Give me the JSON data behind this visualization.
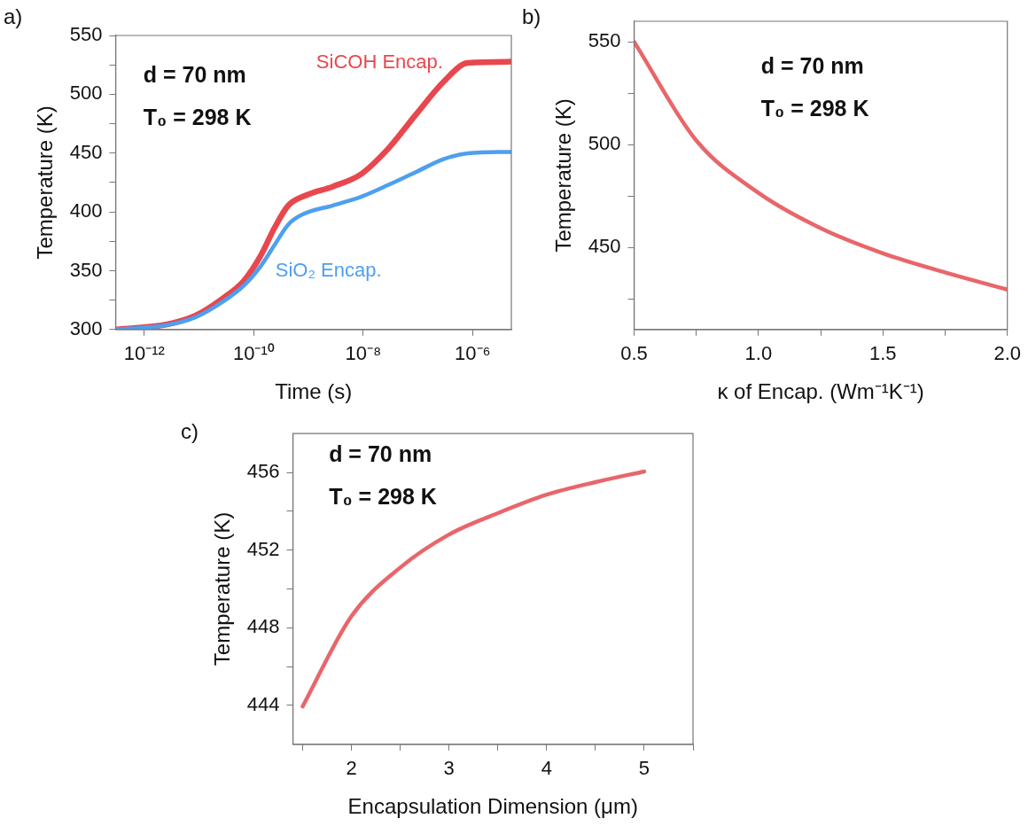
{
  "chart_data": [
    {
      "type": "line",
      "title": "a)",
      "xlabel": "Time (s)",
      "ylabel": "Temperature (K)",
      "log": "x",
      "xlim": [
        3.1e-13,
        5.1e-06
      ],
      "xticks": [
        {
          "value": 1e-12,
          "label": "10⁻¹²"
        },
        {
          "value": 1e-10,
          "label": "10⁻¹⁰"
        },
        {
          "value": 1e-08,
          "label": "10⁻⁸"
        },
        {
          "value": 1e-06,
          "label": "10⁻⁶"
        }
      ],
      "ylim": [
        300,
        550
      ],
      "yticks": [
        300,
        {
          "value": 325,
          "label": null
        },
        350,
        {
          "value": 375,
          "label": null
        },
        400,
        {
          "value": 425,
          "label": null
        },
        450,
        {
          "value": 475,
          "label": null
        },
        500,
        {
          "value": 525,
          "label": null
        },
        550
      ],
      "grid": false,
      "legend": false,
      "marker": "none",
      "line_style": "solid",
      "annotations": [
        "d = 70 nm",
        "T₀ = 298 K"
      ],
      "series": [
        {
          "name": "SiCOH Encap.",
          "color": "#e8474d",
          "x": [
            3.1e-13,
            2.6e-12,
            8.5e-12,
            2.7e-11,
            6.5e-11,
            1.35e-10,
            2.4e-10,
            4.3e-10,
            8.9e-10,
            2.8e-09,
            9.1e-09,
            2.9e-08,
            9.3e-08,
            3e-07,
            8.1e-07,
            5.1e-06
          ],
          "values": [
            300,
            304.4,
            311.7,
            326.4,
            341,
            363,
            386.5,
            405.5,
            414,
            421.6,
            432,
            454,
            483,
            511,
            526.6,
            527.7
          ]
        },
        {
          "name": "SiO₂ Encap.",
          "color": "#4d9ff0",
          "x": [
            3.1e-13,
            2.6e-12,
            8.5e-12,
            2.7e-11,
            6.5e-11,
            1.35e-10,
            2.4e-10,
            4.3e-10,
            7.6e-10,
            2.8e-09,
            9.1e-09,
            2.9e-08,
            9.3e-08,
            3e-07,
            8.1e-07,
            5.1e-06
          ],
          "values": [
            300,
            303.8,
            310.3,
            323.5,
            337,
            354,
            371.8,
            389.4,
            397.6,
            405.5,
            412.8,
            423,
            434,
            445,
            449.8,
            451
          ]
        }
      ]
    },
    {
      "type": "line",
      "title": "b)",
      "xlabel": "κ of Encap. (Wm⁻¹K⁻¹)",
      "ylabel": "Temperature (K)",
      "xlim": [
        0.5,
        2.0
      ],
      "xticks": [
        {
          "value": 0.5,
          "label": "0.5"
        },
        {
          "value": 0.75,
          "label": null
        },
        {
          "value": 1,
          "label": "1.0"
        },
        {
          "value": 1.25,
          "label": null
        },
        {
          "value": 1.5,
          "label": "1.5"
        },
        {
          "value": 1.75,
          "label": null
        },
        {
          "value": 2,
          "label": "2.0"
        }
      ],
      "ylim": [
        410,
        560
      ],
      "yticks": [
        {
          "value": 425,
          "label": null
        },
        450,
        {
          "value": 475,
          "label": null
        },
        500,
        {
          "value": 525,
          "label": null
        },
        550
      ],
      "grid": false,
      "legend": false,
      "marker": "none",
      "line_style": "solid",
      "annotations": [
        "d = 70 nm",
        "T₀ = 298 K"
      ],
      "series": [
        {
          "color": "#e8666b",
          "x": [
            0.5,
            0.75,
            1,
            1.25,
            1.5,
            1.75,
            2
          ],
          "values": [
            550,
            502,
            476.5,
            459.3,
            447.1,
            437.8,
            429.4
          ]
        }
      ]
    },
    {
      "type": "line",
      "title": "c)",
      "xlabel": "Encapsulation Dimension (μm)",
      "ylabel": "Temperature (K)",
      "xlim": [
        1.4,
        5.5
      ],
      "xticks": [
        {
          "value": 1.5,
          "label": null
        },
        2,
        {
          "value": 2.5,
          "label": null
        },
        3,
        {
          "value": 3.5,
          "label": null
        },
        4,
        {
          "value": 4.5,
          "label": null
        },
        5,
        {
          "value": 5.5,
          "label": null
        }
      ],
      "ylim": [
        442,
        458
      ],
      "yticks": [
        444,
        {
          "value": 446,
          "label": null
        },
        448,
        {
          "value": 450,
          "label": null
        },
        452,
        {
          "value": 454,
          "label": null
        },
        456
      ],
      "grid": false,
      "legend": false,
      "marker": "none",
      "line_style": "solid",
      "annotations": [
        "d = 70 nm",
        "T₀ = 298 K"
      ],
      "series": [
        {
          "color": "#e8666b",
          "x": [
            1.5,
            2,
            2.5,
            3,
            3.5,
            4,
            4.5,
            5
          ],
          "values": [
            443.95,
            448.6,
            451.1,
            452.8,
            453.9,
            454.85,
            455.5,
            456.05
          ]
        }
      ]
    }
  ]
}
